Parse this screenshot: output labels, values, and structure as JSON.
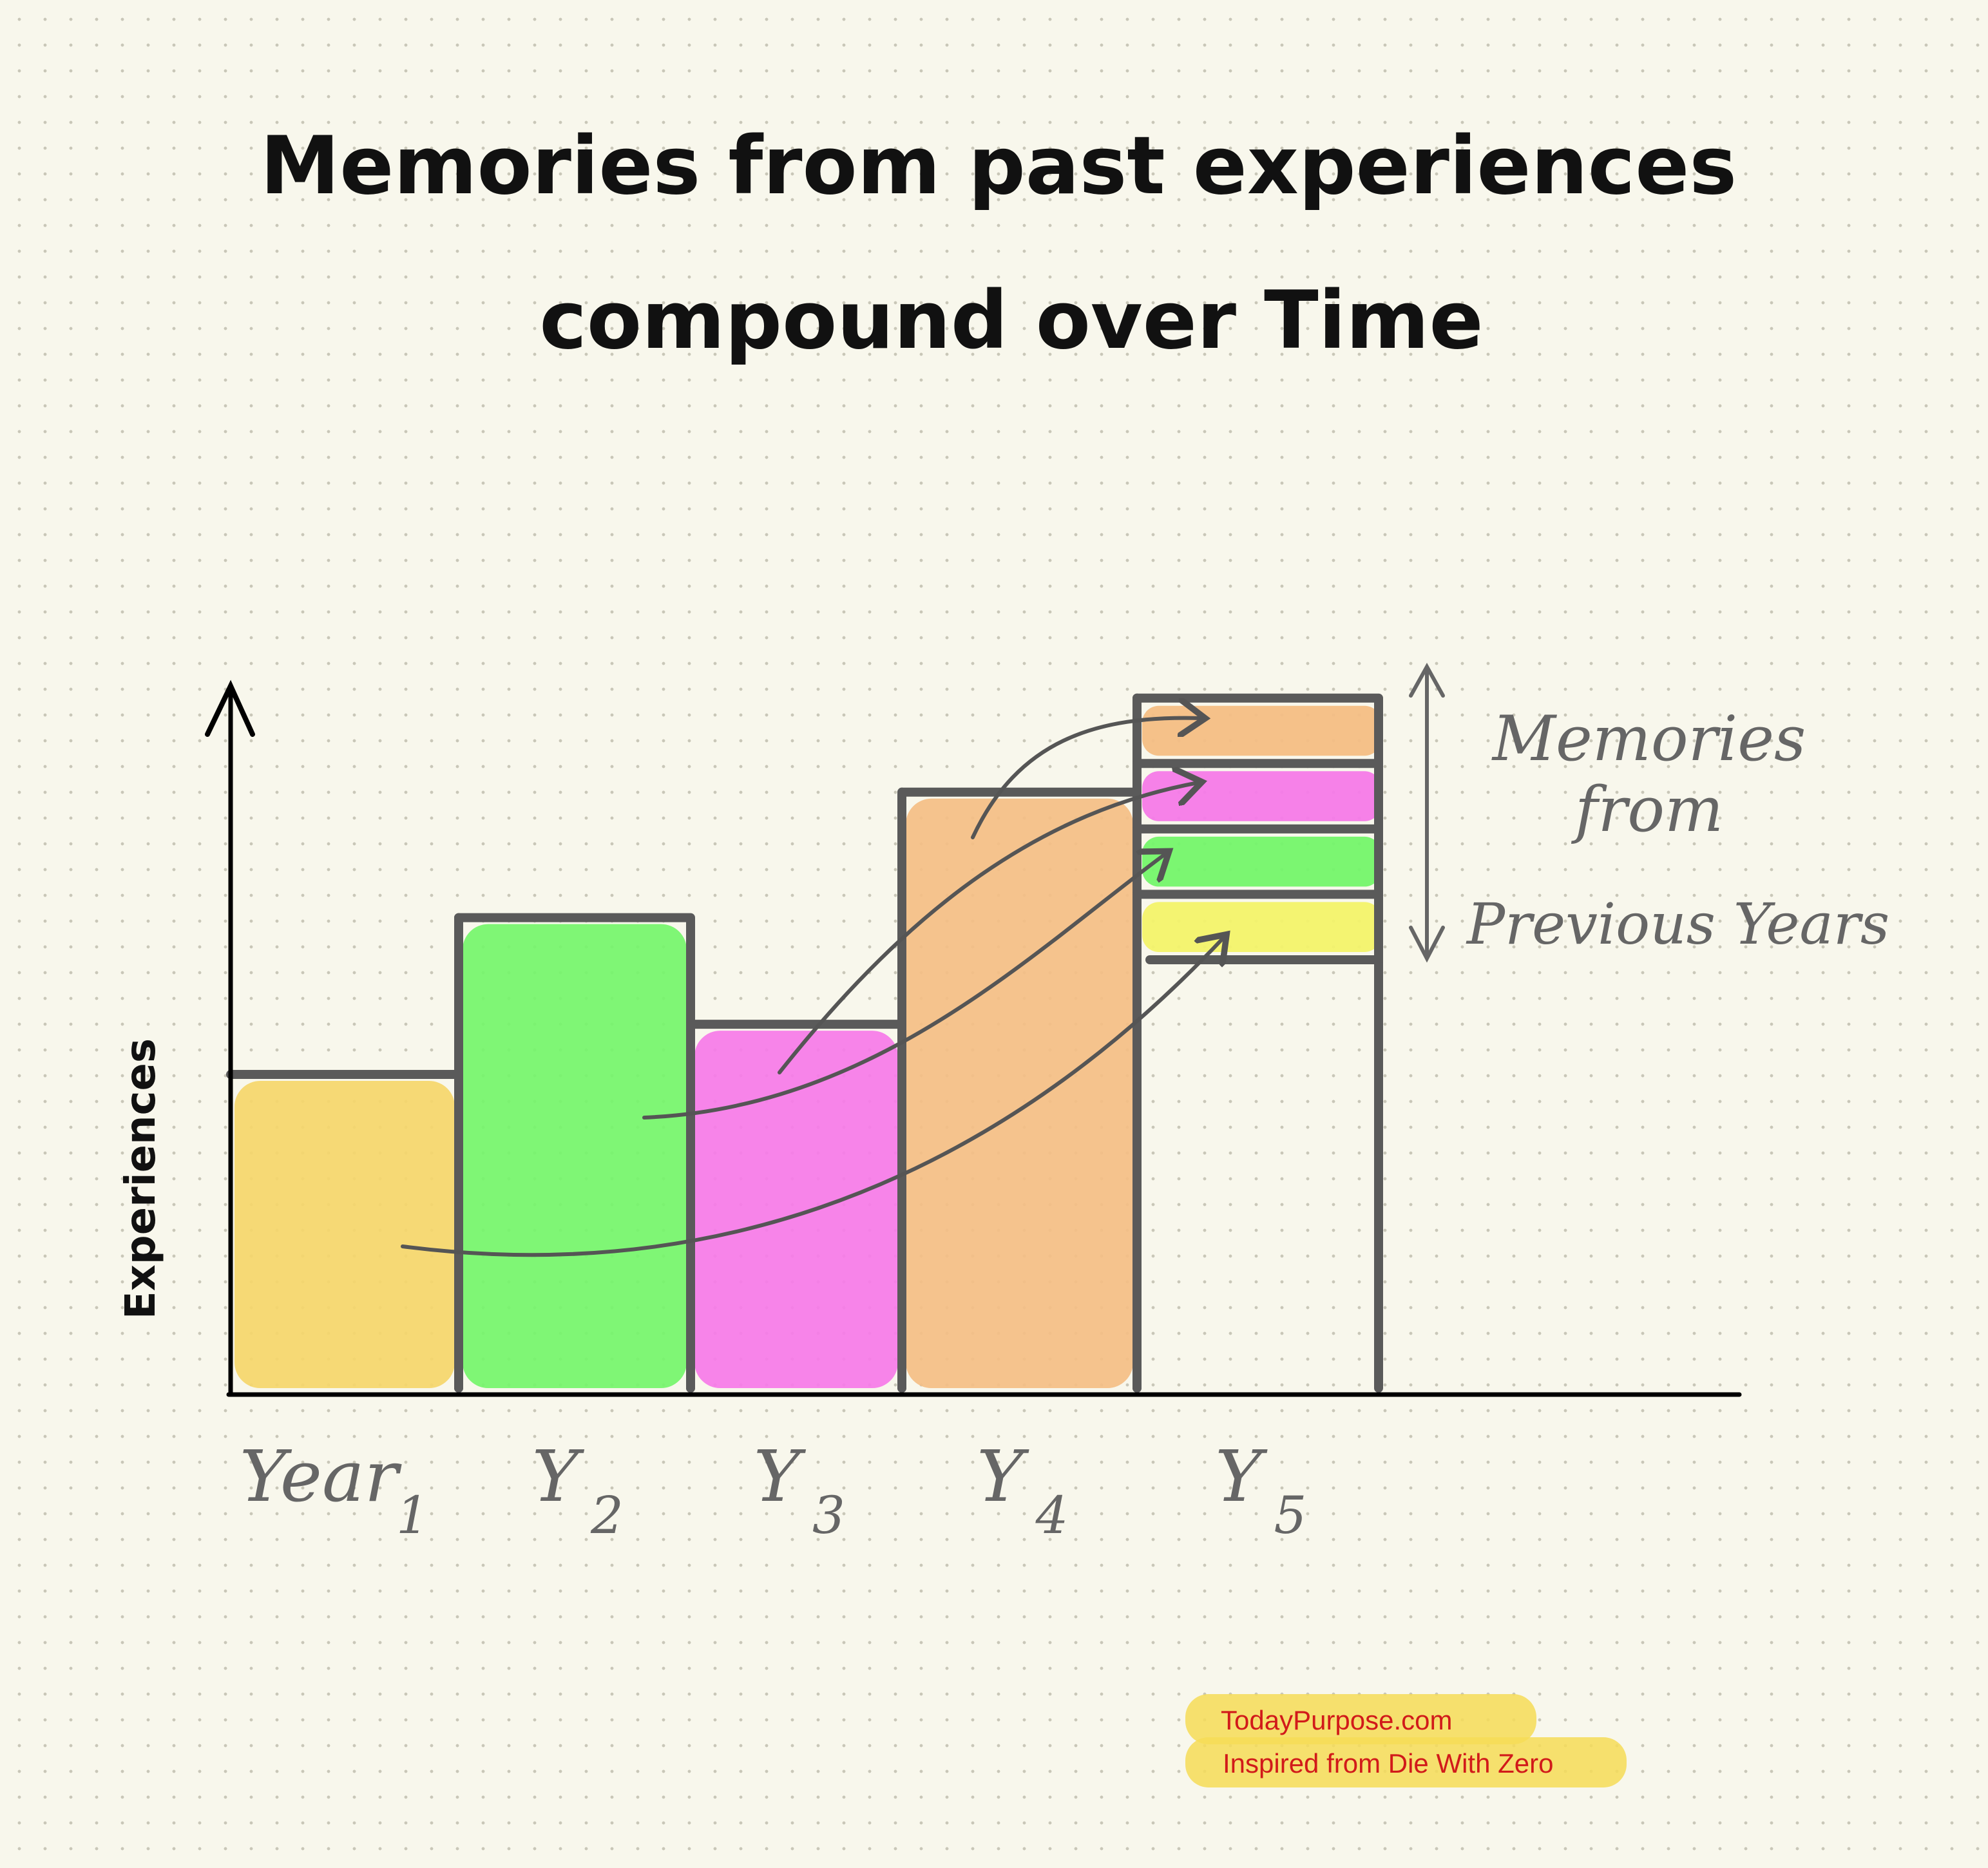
{
  "chart_data": {
    "type": "bar",
    "title_lines": [
      "Memories from past experiences",
      "compound over Time"
    ],
    "ylabel": "Experiences",
    "xlabel": "",
    "categories": [
      "Year1",
      "Y2",
      "Y3",
      "Y4",
      "Y5"
    ],
    "category_labels": [
      {
        "main": "Year",
        "sub": "1"
      },
      {
        "main": "Y",
        "sub": "2"
      },
      {
        "main": "Y",
        "sub": "3"
      },
      {
        "main": "Y",
        "sub": "4"
      },
      {
        "main": "Y",
        "sub": "5"
      }
    ],
    "values": [
      50,
      75,
      58,
      95,
      110
    ],
    "ylim": [
      0,
      115
    ],
    "grid": false,
    "bar_colors": [
      "#f5d66a",
      "#74f56a",
      "#f67ae8",
      "#f4be84",
      "none"
    ],
    "year5_memory_layers": [
      {
        "from": "Year1",
        "color": "#f3f36a"
      },
      {
        "from": "Y2",
        "color": "#74f56a"
      },
      {
        "from": "Y3",
        "color": "#f67ae8"
      },
      {
        "from": "Y4",
        "color": "#f4be84"
      }
    ],
    "annotation_lines": [
      "Memories",
      "from",
      "Previous Years"
    ]
  },
  "credits": {
    "site": "TodayPurpose.com",
    "inspired": "Inspired from Die With Zero"
  },
  "colors": {
    "outline": "#5a5a5a",
    "axis": "#000000",
    "highlight": "#f6dc57"
  }
}
